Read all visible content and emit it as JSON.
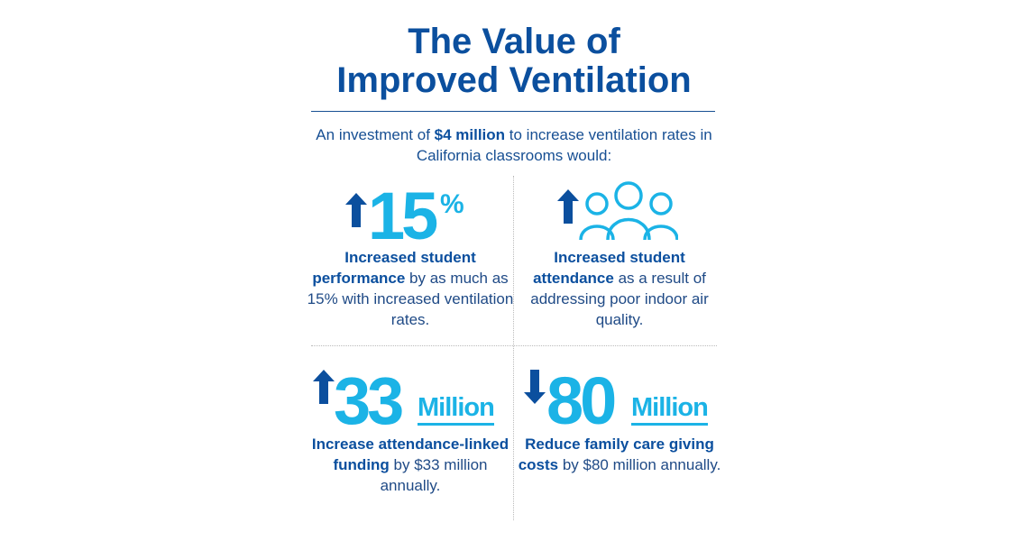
{
  "header": {
    "title_lines": [
      "The Value of",
      "Improved Ventilation"
    ]
  },
  "intro": {
    "before": "An investment of ",
    "bold": "$4 million",
    "after": " to increase ventilation rates in California classrooms would:"
  },
  "cards": [
    {
      "stat": "15",
      "unit": "%",
      "bold": "Increased student performance",
      "text": " by as much as 15% with increased ventilation rates."
    },
    {
      "bold": "Increased student attendance",
      "text": " as a result of addressing poor indoor air quality."
    },
    {
      "stat": "33",
      "unit": "Million",
      "bold": "Increase attendance-linked funding",
      "text": " by $33 million annually."
    },
    {
      "stat": "80",
      "unit": "Million",
      "bold": "Reduce family care giving costs",
      "text": " by $80 million annually."
    }
  ]
}
